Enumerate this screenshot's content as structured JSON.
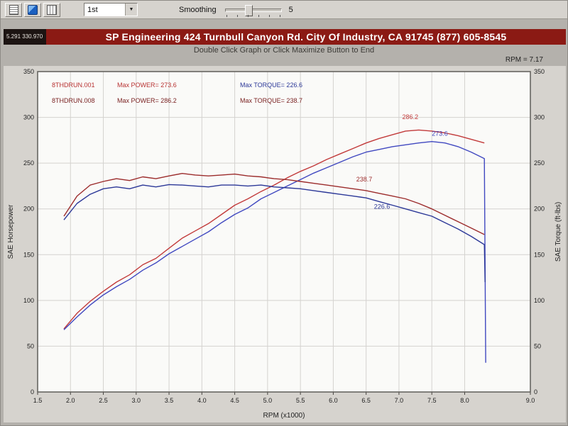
{
  "toolbar": {
    "icons": [
      {
        "name": "report-icon"
      },
      {
        "name": "gauge-icon"
      },
      {
        "name": "grid-icon"
      }
    ],
    "dropdown_value": "1st",
    "smoothing_label": "Smoothing",
    "smoothing_value": "5"
  },
  "header": {
    "readout": "5.291  330.970",
    "title": "SP Engineering 424 Turnbull Canyon Rd. City Of Industry, CA 91745 (877) 605-8545",
    "subtitle": "Double Click Graph or Click Maximize Button to End",
    "cursor_readout": "RPM = 7.17"
  },
  "chart_data": {
    "type": "line",
    "title": "",
    "xlabel": "RPM (x1000)",
    "ylabel_left": "SAE Horsepower",
    "ylabel_right": "SAE Torque (ft-lbs)",
    "xlim": [
      1.5,
      9.0
    ],
    "ylim": [
      0,
      350
    ],
    "x_ticks": [
      1.5,
      2.0,
      2.5,
      3.0,
      3.5,
      4.0,
      4.5,
      5.0,
      5.5,
      6.0,
      6.5,
      7.0,
      7.5,
      8.0,
      9.0
    ],
    "y_ticks": [
      0,
      50,
      100,
      150,
      200,
      250,
      300,
      350
    ],
    "grid": true,
    "legend_position": "top-left-inside",
    "legend": [
      {
        "file": "8THDRUN.001",
        "max_power_label": "Max POWER= 273.6",
        "max_torque_label": "Max TORQUE= 226.6",
        "color": "#b83232",
        "torque_color": "#2c3898"
      },
      {
        "file": "8THDRUN.008",
        "max_power_label": "Max POWER= 286.2",
        "max_torque_label": "Max TORQUE= 238.7",
        "color": "#7a2222",
        "torque_color": "#7a2222"
      }
    ],
    "series": [
      {
        "name": "hp-run-008",
        "color": "#c23a3a",
        "x": [
          1.9,
          2.1,
          2.3,
          2.5,
          2.7,
          2.9,
          3.1,
          3.3,
          3.5,
          3.7,
          3.9,
          4.1,
          4.3,
          4.5,
          4.7,
          4.9,
          5.1,
          5.3,
          5.5,
          5.7,
          5.9,
          6.1,
          6.3,
          6.5,
          6.7,
          6.9,
          7.1,
          7.3,
          7.5,
          7.7,
          7.9,
          8.1,
          8.3
        ],
        "y": [
          69,
          86,
          99,
          110,
          120,
          128,
          139,
          146,
          157,
          168,
          176,
          184,
          194,
          204,
          211,
          219,
          226,
          234,
          241,
          247,
          254,
          260,
          266,
          272,
          277,
          281,
          285,
          286.2,
          285,
          283,
          280,
          276,
          272
        ]
      },
      {
        "name": "hp-run-001",
        "color": "#4048c0",
        "x": [
          1.9,
          2.1,
          2.3,
          2.5,
          2.7,
          2.9,
          3.1,
          3.3,
          3.5,
          3.7,
          3.9,
          4.1,
          4.3,
          4.5,
          4.7,
          4.9,
          5.1,
          5.3,
          5.5,
          5.7,
          5.9,
          6.1,
          6.3,
          6.5,
          6.7,
          6.9,
          7.1,
          7.3,
          7.5,
          7.7,
          7.9,
          8.1,
          8.3,
          8.32
        ],
        "y": [
          68,
          82,
          95,
          106,
          115,
          123,
          133,
          141,
          151,
          159,
          167,
          175,
          185,
          194,
          201,
          211,
          218,
          225,
          232,
          239,
          245,
          251,
          257,
          262,
          265,
          268,
          270,
          272,
          273.6,
          272,
          268,
          262,
          255,
          32
        ]
      },
      {
        "name": "tq-run-008",
        "color": "#9c2c2c",
        "x": [
          1.9,
          2.1,
          2.3,
          2.5,
          2.7,
          2.9,
          3.1,
          3.3,
          3.5,
          3.7,
          3.9,
          4.1,
          4.3,
          4.5,
          4.7,
          4.9,
          5.1,
          5.3,
          5.5,
          5.7,
          5.9,
          6.1,
          6.3,
          6.5,
          6.7,
          6.9,
          7.1,
          7.3,
          7.5,
          7.7,
          7.9,
          8.1,
          8.3
        ],
        "y": [
          192,
          214,
          226,
          230,
          233,
          231,
          235,
          233,
          236,
          238.7,
          237,
          236,
          237,
          238,
          236,
          235,
          233,
          232,
          230,
          228,
          226,
          224,
          222,
          220,
          217,
          214,
          211,
          206,
          200,
          193,
          186,
          179,
          172
        ]
      },
      {
        "name": "tq-run-001",
        "color": "#2c3898",
        "x": [
          1.9,
          2.1,
          2.3,
          2.5,
          2.7,
          2.9,
          3.1,
          3.3,
          3.5,
          3.7,
          3.9,
          4.1,
          4.3,
          4.5,
          4.7,
          4.9,
          5.1,
          5.3,
          5.5,
          5.7,
          5.9,
          6.1,
          6.3,
          6.5,
          6.7,
          6.9,
          7.1,
          7.3,
          7.5,
          7.7,
          7.9,
          8.1,
          8.3,
          8.31
        ],
        "y": [
          188,
          206,
          216,
          222,
          224,
          222,
          226,
          224,
          226.6,
          226,
          225,
          224,
          226,
          226,
          225,
          226,
          224,
          223,
          222,
          220,
          218,
          216,
          214,
          212,
          208,
          204,
          200,
          196,
          192,
          185,
          178,
          170,
          161,
          120
        ]
      }
    ],
    "point_labels": [
      {
        "text": "286.2",
        "x": 7.05,
        "y": 298,
        "color": "#c23a3a"
      },
      {
        "text": "273.6",
        "x": 7.5,
        "y": 280,
        "color": "#4048c0"
      },
      {
        "text": "238.7",
        "x": 6.35,
        "y": 230,
        "color": "#9c2c2c"
      },
      {
        "text": "226.6",
        "x": 6.62,
        "y": 200,
        "color": "#2c3898"
      }
    ]
  }
}
